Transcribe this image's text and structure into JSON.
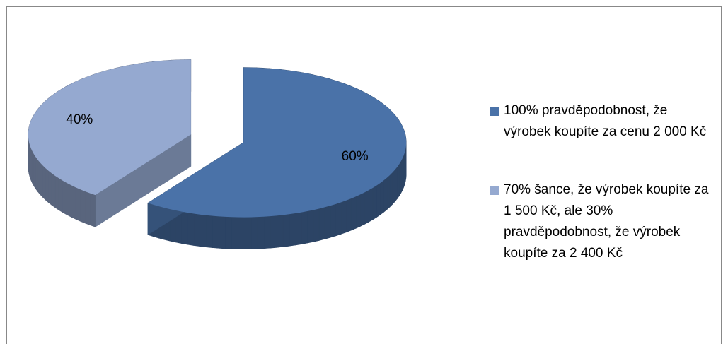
{
  "chart_data": {
    "type": "pie",
    "categories": [
      "100% pravděpodobnost, že výrobek koupíte za cenu 2 000 Kč",
      "70% šance, že výrobek koupíte za 1 500 Kč, ale 30% pravděpodobnost, že výrobek koupíte za 2 400 Kč"
    ],
    "values": [
      60,
      40
    ],
    "value_labels": [
      "60%",
      "40%"
    ],
    "colors": [
      "#4a72a8",
      "#95a9d0"
    ],
    "legend": "right"
  }
}
